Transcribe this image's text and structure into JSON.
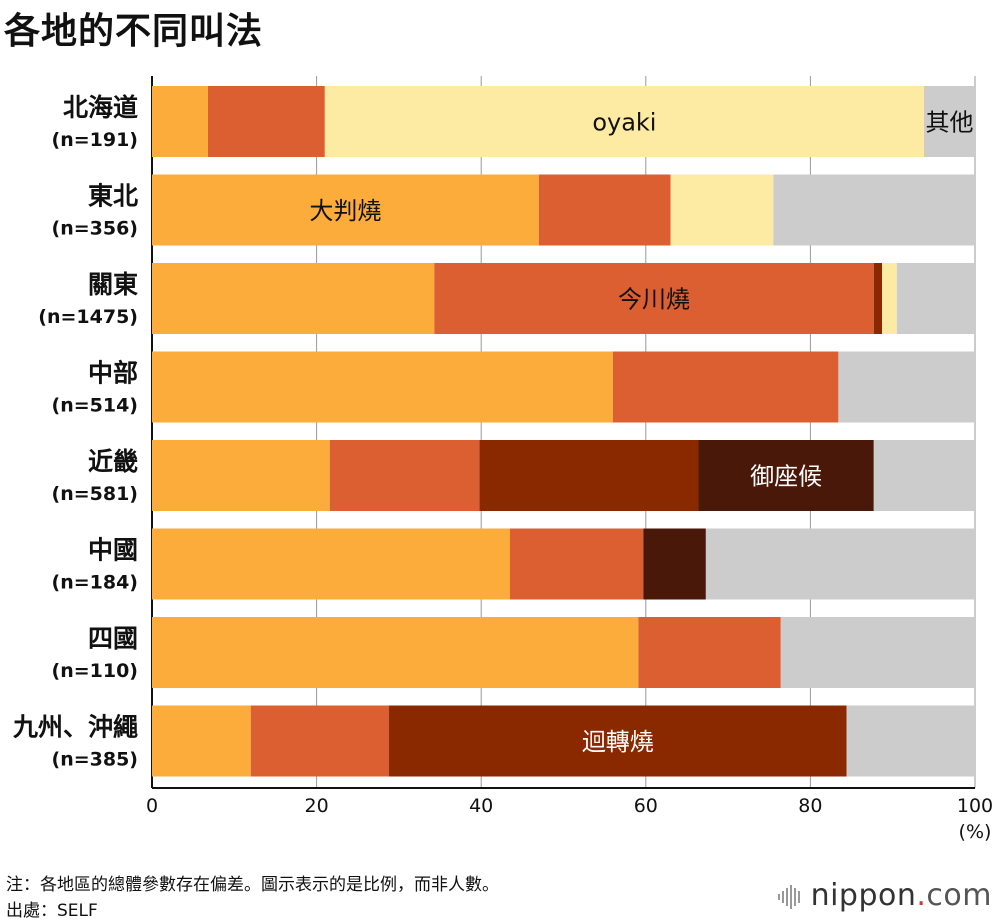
{
  "title": "各地的不同叫法",
  "chart_data": {
    "type": "bar",
    "orientation": "horizontal",
    "stacked": true,
    "title": "各地的不同叫法",
    "xlabel": "(%)",
    "xlim": [
      0,
      100
    ],
    "xticks": [
      "0",
      "20",
      "40",
      "60",
      "80",
      "100"
    ],
    "grid": true,
    "categories": [
      {
        "name": "北海道",
        "n": "(n=191)"
      },
      {
        "name": "東北",
        "n": "(n=356)"
      },
      {
        "name": "關東",
        "n": "(n=1475)"
      },
      {
        "name": "中部",
        "n": "(n=514)"
      },
      {
        "name": "近畿",
        "n": "(n=581)"
      },
      {
        "name": "中國",
        "n": "(n=184)"
      },
      {
        "name": "四國",
        "n": "(n=110)"
      },
      {
        "name": "九州、沖繩",
        "n": "(n=385)"
      }
    ],
    "series": [
      {
        "name": "大判燒",
        "color": "#fbac3b",
        "values": [
          6.8,
          47.0,
          34.3,
          56.0,
          21.6,
          43.5,
          59.1,
          12.0
        ]
      },
      {
        "name": "今川燒",
        "color": "#db5f31",
        "values": [
          14.2,
          16.0,
          53.4,
          27.4,
          18.2,
          16.2,
          17.3,
          16.8
        ]
      },
      {
        "name": "迴轉燒",
        "color": "#8a2800",
        "values": [
          0,
          0,
          1.0,
          0,
          26.6,
          0,
          0,
          55.6
        ]
      },
      {
        "name": "御座候",
        "color": "#4a1808",
        "values": [
          0,
          0,
          0,
          0,
          21.3,
          7.6,
          0,
          0
        ]
      },
      {
        "name": "oyaki",
        "color": "#fdeba3",
        "values": [
          72.8,
          12.5,
          1.8,
          0,
          0,
          0,
          0,
          0
        ]
      },
      {
        "name": "其他",
        "color": "#cccccc",
        "values": [
          6.2,
          24.5,
          9.5,
          16.6,
          12.3,
          32.7,
          23.6,
          15.6
        ]
      }
    ],
    "annotations": [
      {
        "text": "oyaki",
        "category": "北海道",
        "series": "oyaki",
        "text_color": "#111111"
      },
      {
        "text": "其他",
        "category": "北海道",
        "series": "其他",
        "text_color": "#111111"
      },
      {
        "text": "大判燒",
        "category": "東北",
        "series": "大判燒",
        "text_color": "#111111"
      },
      {
        "text": "今川燒",
        "category": "關東",
        "series": "今川燒",
        "text_color": "#111111"
      },
      {
        "text": "御座候",
        "category": "近畿",
        "series": "御座候",
        "text_color": "#ffffff"
      },
      {
        "text": "迴轉燒",
        "category": "九州、沖繩",
        "series": "迴轉燒",
        "text_color": "#ffffff"
      }
    ]
  },
  "footer": {
    "note": "注：各地區的總體參數存在偏差。圖示表示的是比例，而非人數。",
    "source": "出處：SELF"
  },
  "brand": {
    "name": "nippon",
    "dot": ".",
    "suffix": "com"
  }
}
